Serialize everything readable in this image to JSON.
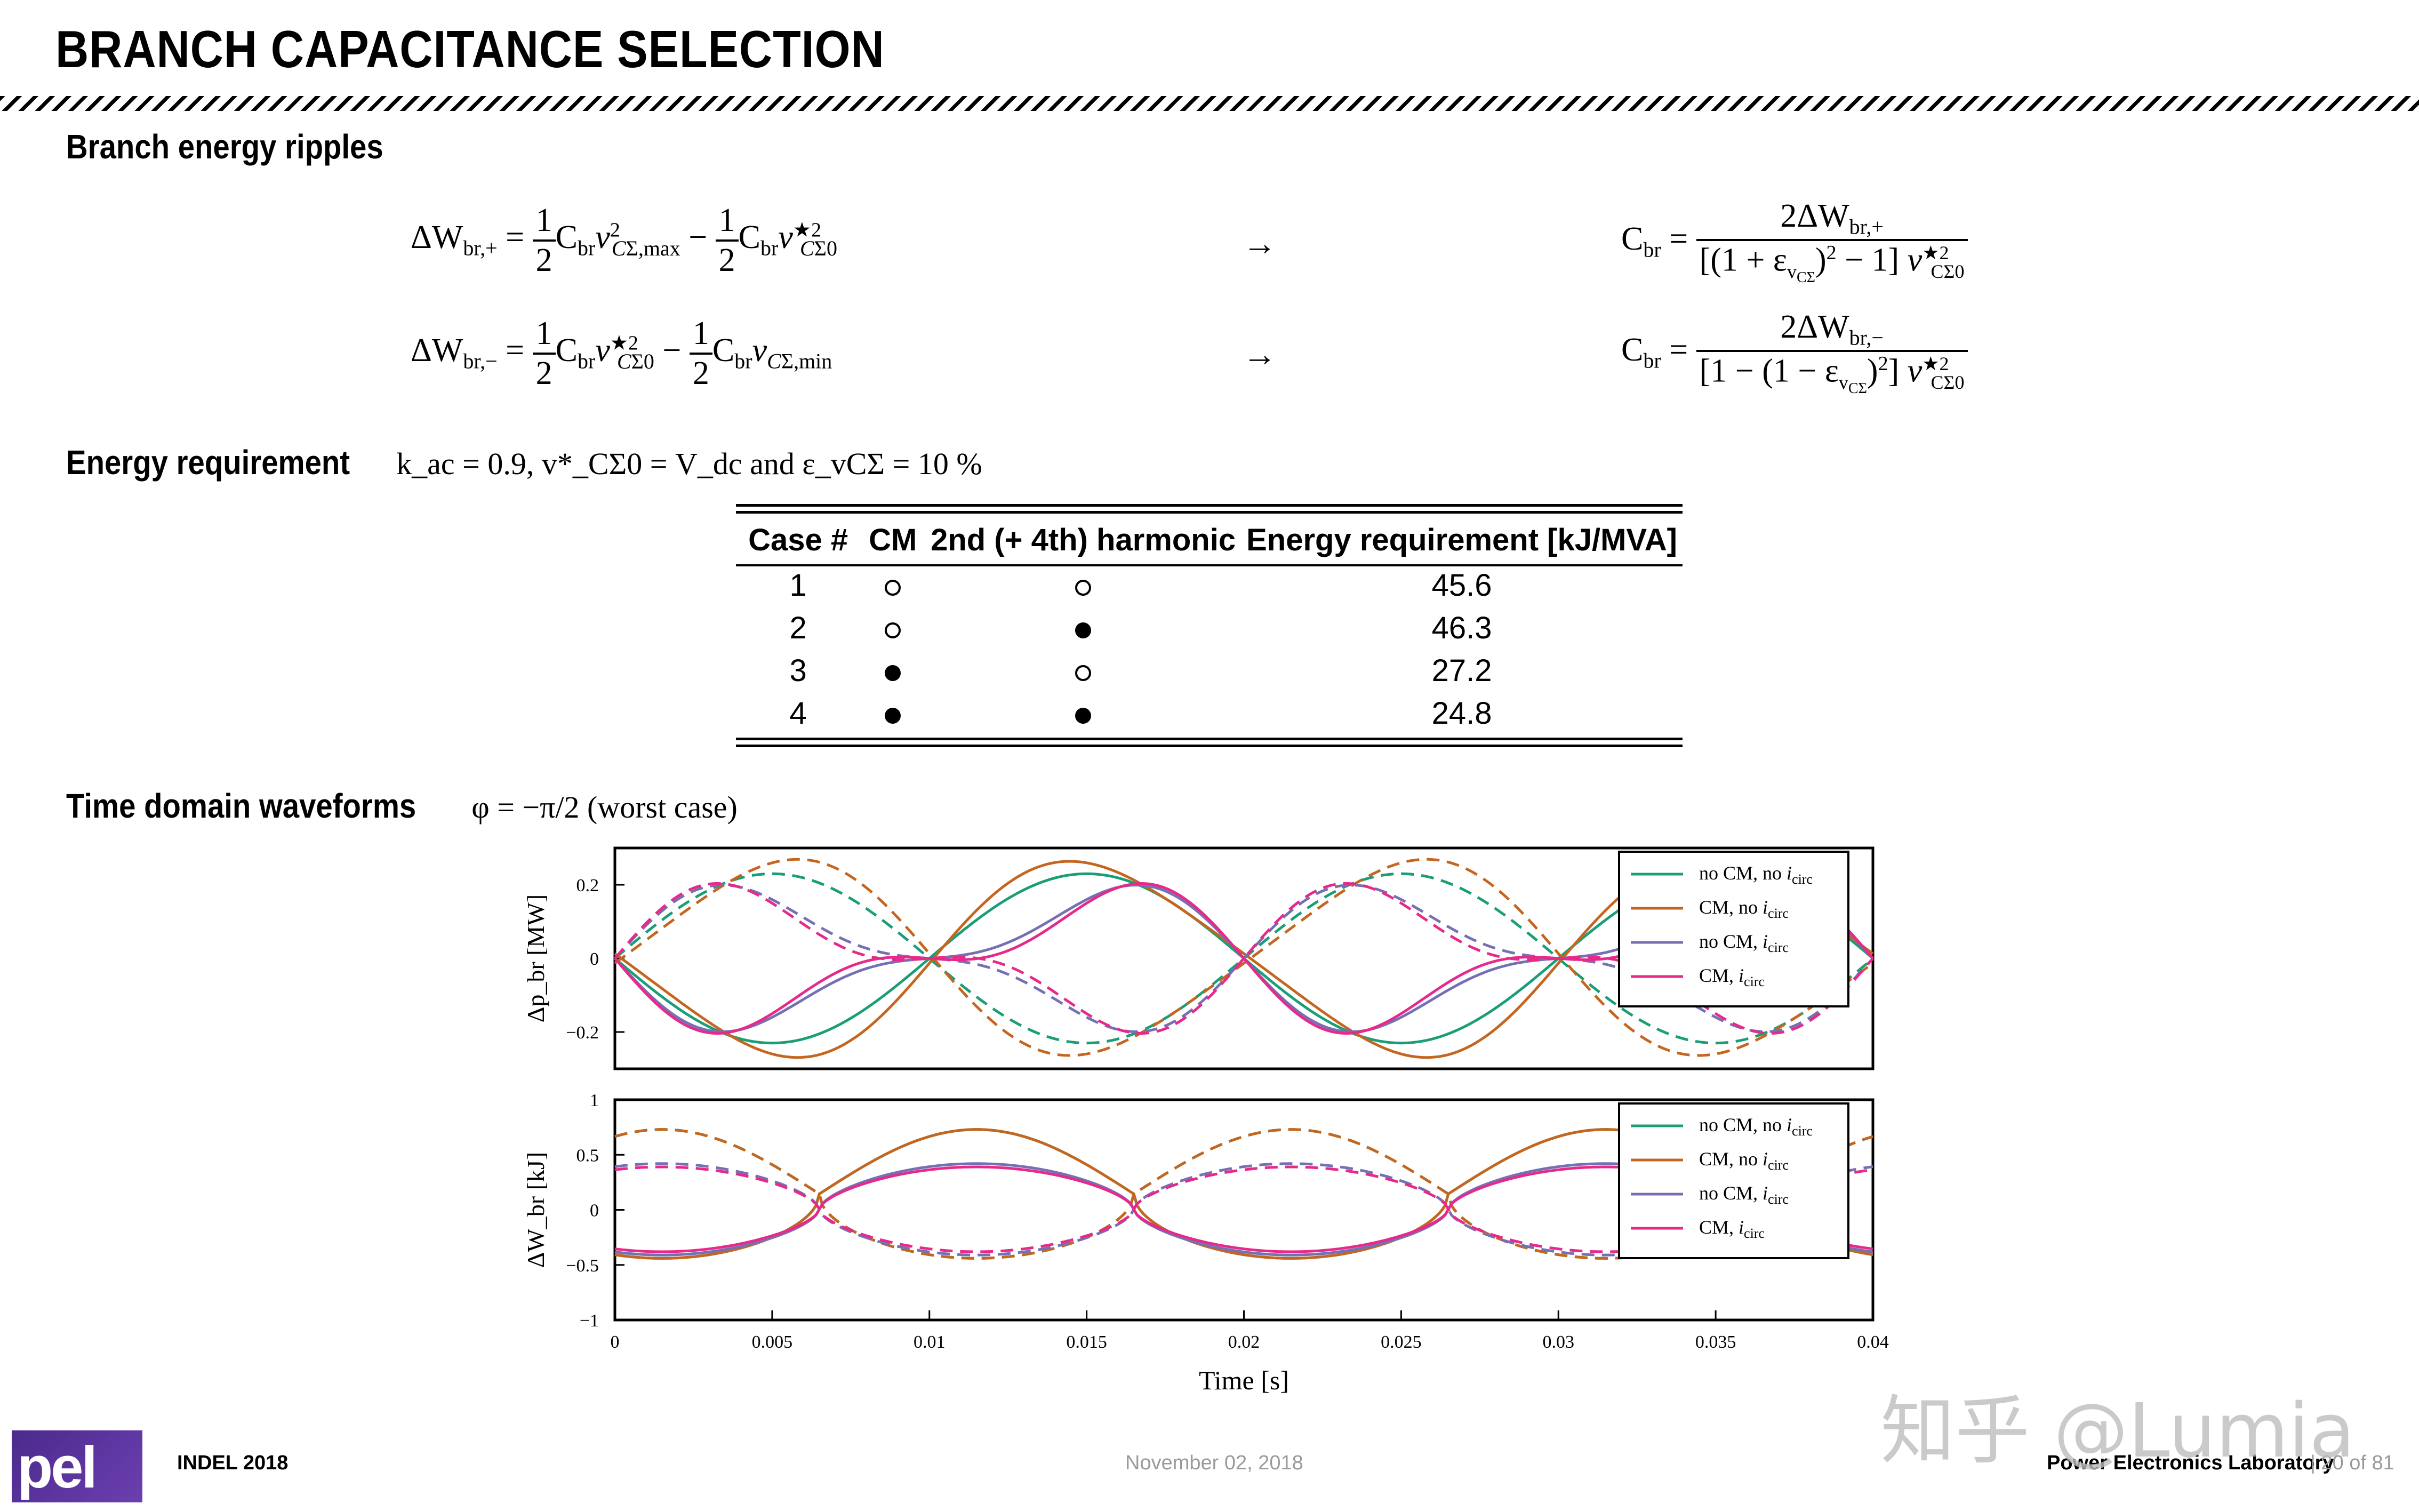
{
  "slide": {
    "title": "BRANCH CAPACITANCE SELECTION",
    "section1": "Branch energy ripples",
    "section2_label": "Energy requirement",
    "section2_math": " k_ac = 0.9, v*_CΣ0 = V_dc and ε_vCΣ = 10 %",
    "section3_label": "Time domain waveforms",
    "section3_math": " φ = −π/2 (worst case)"
  },
  "equations": {
    "eq1_lhs": "ΔW",
    "eq1_sub": "br,+",
    "eq2_sub": "br,−",
    "arrow": "→",
    "cbr": "C",
    "cbr_sub": "br"
  },
  "table": {
    "headers": [
      "Case #",
      "CM",
      "2nd (+ 4th) harmonic",
      "Energy requirement [kJ/MVA]"
    ],
    "rows": [
      {
        "case": "1",
        "cm": false,
        "harm": false,
        "energy": "45.6"
      },
      {
        "case": "2",
        "cm": false,
        "harm": true,
        "energy": "46.3"
      },
      {
        "case": "3",
        "cm": true,
        "harm": false,
        "energy": "27.2"
      },
      {
        "case": "4",
        "cm": true,
        "harm": true,
        "energy": "24.8"
      }
    ]
  },
  "colors": {
    "teal": "#1b9e77",
    "orange": "#c4661f",
    "purple": "#7570b3",
    "magenta": "#e7298a"
  },
  "chart_data": [
    {
      "type": "line",
      "ylabel": "Δp_br [MW]",
      "ylim": [
        -0.3,
        0.3
      ],
      "yticks": [
        "0.2",
        "0",
        "−0.2"
      ],
      "legend_position": "top-right",
      "series": [
        {
          "name": "no CM, no i_circ",
          "amp": 0.23,
          "style": "solid"
        },
        {
          "name": "CM, no i_circ",
          "amp": 0.26,
          "style": "solid"
        },
        {
          "name": "no CM, i_circ",
          "amp": 0.19,
          "style": "solid"
        },
        {
          "name": "CM, i_circ",
          "amp": 0.19,
          "style": "solid"
        }
      ],
      "x_range": [
        0,
        0.04
      ]
    },
    {
      "type": "line",
      "ylabel": "ΔW_br [kJ]",
      "xlabel": "Time [s]",
      "ylim": [
        -1,
        1
      ],
      "yticks": [
        "1",
        "0.5",
        "0",
        "−0.5",
        "−1"
      ],
      "xticks": [
        "0",
        "0.005",
        "0.01",
        "0.015",
        "0.02",
        "0.025",
        "0.03",
        "0.035",
        "0.04"
      ],
      "legend_position": "top-right",
      "series": [
        {
          "name": "no CM, no i_circ",
          "max": 0.73,
          "min": -0.44
        },
        {
          "name": "CM, no i_circ",
          "max": 0.73,
          "min": -0.44
        },
        {
          "name": "no CM, i_circ",
          "max": 0.42,
          "min": -0.41
        },
        {
          "name": "CM, i_circ",
          "max": 0.39,
          "min": -0.38
        }
      ],
      "x_range": [
        0,
        0.04
      ]
    }
  ],
  "legend": [
    {
      "main": "no CM, no ",
      "i": "i",
      "sub": "circ"
    },
    {
      "main": "CM, no ",
      "i": "i",
      "sub": "circ"
    },
    {
      "main": "no CM, ",
      "i": "i",
      "sub": "circ"
    },
    {
      "main": "CM, ",
      "i": "i",
      "sub": "circ"
    }
  ],
  "footer": {
    "conference": "INDEL 2018",
    "date": "November 02, 2018",
    "lab": "Power Electronics Laboratory",
    "page": "| 20 of 81",
    "logo": "pel",
    "watermark": "知乎 @Lumia"
  }
}
